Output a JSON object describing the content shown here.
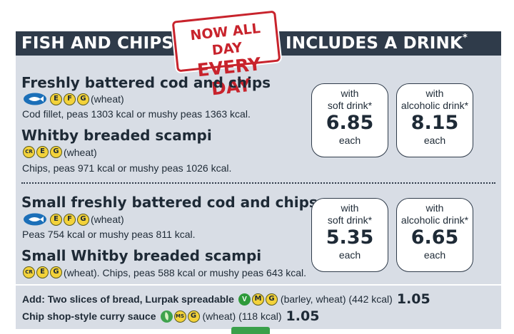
{
  "header": {
    "left_title": "FISH AND CHIPS",
    "stamp_line1": "NOW ALL DAY",
    "stamp_line2": "EVERY DAY",
    "right_title": "INCLUDES A DRINK",
    "right_mark": "*"
  },
  "section1": {
    "items": [
      {
        "title": "Freshly battered cod and chips",
        "allergens": [
          "E",
          "F",
          "G"
        ],
        "allergen_note": "(wheat)",
        "description": "Cod fillet, peas 1303 kcal or mushy peas 1363 kcal."
      },
      {
        "title": "Whitby breaded scampi",
        "allergens": [
          "CR",
          "E",
          "G"
        ],
        "allergen_note": "(wheat)",
        "description": "Chips, peas 971 kcal or mushy peas 1026 kcal."
      }
    ],
    "prices": [
      {
        "line1": "with",
        "line2": "soft drink*",
        "value": "6.85",
        "unit": "each"
      },
      {
        "line1": "with",
        "line2": "alcoholic drink*",
        "value": "8.15",
        "unit": "each"
      }
    ]
  },
  "section2": {
    "items": [
      {
        "title": "Small freshly battered cod and chips",
        "allergens": [
          "E",
          "F",
          "G"
        ],
        "allergen_note": "(wheat)",
        "description": "Peas 754 kcal or mushy peas 811 kcal."
      },
      {
        "title": "Small Whitby breaded scampi",
        "allergens": [
          "CR",
          "E",
          "G"
        ],
        "allergen_note": "(wheat). Chips, peas 588 kcal or mushy peas 643 kcal."
      }
    ],
    "prices": [
      {
        "line1": "with",
        "line2": "soft drink*",
        "value": "5.35",
        "unit": "each"
      },
      {
        "line1": "with",
        "line2": "alcoholic drink*",
        "value": "6.65",
        "unit": "each"
      }
    ]
  },
  "extras": [
    {
      "label": "Add: Two slices of bread, Lurpak spreadable",
      "badges": [
        "V",
        "M",
        "G"
      ],
      "note": "(barley, wheat) (442 kcal)",
      "price": "1.05"
    },
    {
      "label": "Chip shop-style curry sauce",
      "badges": [
        "MS",
        "G"
      ],
      "note": "(wheat) (118 kcal)",
      "price": "1.05"
    }
  ],
  "icons": {
    "msc": "msc-sustainable-fish-icon",
    "vegetarian": "vegetarian-icon",
    "vegan": "vegan-leaf-icon"
  },
  "colors": {
    "header_bg": "#2f3b4a",
    "card_bg": "#d8dde5",
    "stamp_red": "#c8232c",
    "allergen_yellow": "#f3d23a",
    "msc_blue": "#1b6fb8"
  }
}
